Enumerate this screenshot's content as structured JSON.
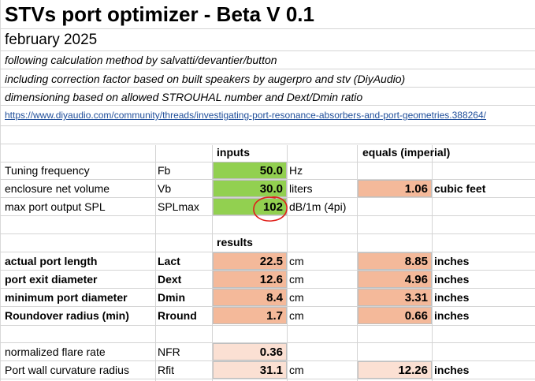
{
  "title": "STVs port optimizer - Beta V 0.1",
  "subtitle": "february 2025",
  "notes": [
    "following calculation method by salvatti/devantier/button",
    "including correction factor based on built speakers by augerpro and stv (DiyAudio)",
    "dimensioning based on allowed STROUHAL number and Dext/Dmin ratio"
  ],
  "link": "https://www.diyaudio.com/community/threads/investigating-port-resonance-absorbers-and-port-geometries.388264/",
  "inputs_header": "inputs",
  "imperial_header": "equals (imperial)",
  "results_header": "results",
  "inputs": [
    {
      "label": "Tuning frequency",
      "symbol": "Fb",
      "value": "50.0",
      "unit": "Hz",
      "imperial_value": "",
      "imperial_unit": ""
    },
    {
      "label": "enclosure net volume",
      "symbol": "Vb",
      "value": "30.0",
      "unit": "liters",
      "imperial_value": "1.06",
      "imperial_unit": "cubic feet"
    },
    {
      "label": "max port output SPL",
      "symbol": "SPLmax",
      "value": "102",
      "unit": "dB/1m (4pi)",
      "imperial_value": "",
      "imperial_unit": ""
    }
  ],
  "results": [
    {
      "label": "actual port length",
      "symbol": "Lact",
      "value": "22.5",
      "unit": "cm",
      "imperial_value": "8.85",
      "imperial_unit": "inches"
    },
    {
      "label": "port exit diameter",
      "symbol": "Dext",
      "value": "12.6",
      "unit": "cm",
      "imperial_value": "4.96",
      "imperial_unit": "inches"
    },
    {
      "label": "minimum port diameter",
      "symbol": "Dmin",
      "value": "8.4",
      "unit": "cm",
      "imperial_value": "3.31",
      "imperial_unit": "inches"
    },
    {
      "label": "Roundover radius (min)",
      "symbol": "Rround",
      "value": "1.7",
      "unit": "cm",
      "imperial_value": "0.66",
      "imperial_unit": "inches"
    }
  ],
  "extras": [
    {
      "label": "normalized flare rate",
      "symbol": "NFR",
      "value": "0.36",
      "unit": "",
      "imperial_value": "",
      "imperial_unit": ""
    },
    {
      "label": "Port wall curvature radius",
      "symbol": "Rfit",
      "value": "31.1",
      "unit": "cm",
      "imperial_value": "12.26",
      "imperial_unit": "inches"
    }
  ],
  "colors": {
    "input_fill": "#92d050",
    "result_fill": "#f4b99a",
    "extra_fill": "#fbe0d3",
    "annotation": "#e0201b",
    "link": "#1f4e9a"
  },
  "annotation": "red hand-drawn circle around SPLmax value"
}
